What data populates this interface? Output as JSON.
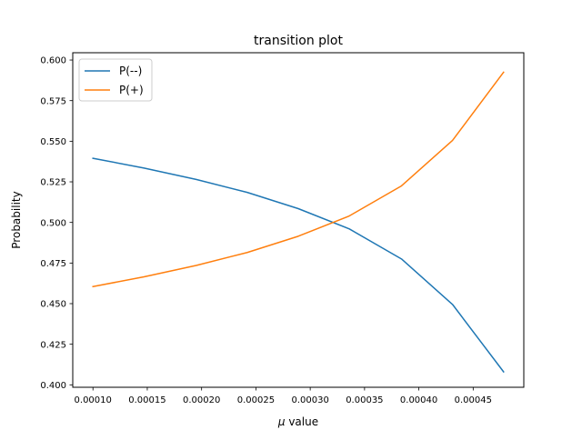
{
  "chart_data": {
    "type": "line",
    "title": "transition plot",
    "xlabel_prefix": "μ",
    "xlabel_suffix": " value",
    "ylabel": "Probability",
    "xlim": [
      8.14e-05,
      0.0004966
    ],
    "ylim": [
      0.3985,
      0.6045
    ],
    "xticks": [
      "0.00010",
      "0.00015",
      "0.00020",
      "0.00025",
      "0.00030",
      "0.00035",
      "0.00040",
      "0.00045"
    ],
    "xtick_values": [
      0.0001,
      0.00015,
      0.0002,
      0.00025,
      0.0003,
      0.00035,
      0.0004,
      0.00045
    ],
    "yticks": [
      "0.400",
      "0.425",
      "0.450",
      "0.475",
      "0.500",
      "0.525",
      "0.550",
      "0.575",
      "0.600"
    ],
    "ytick_values": [
      0.4,
      0.425,
      0.45,
      0.475,
      0.5,
      0.525,
      0.55,
      0.575,
      0.6
    ],
    "x": [
      0.0001,
      0.000147,
      0.000195,
      0.000242,
      0.000289,
      0.000336,
      0.000384,
      0.000431,
      0.000478
    ],
    "series": [
      {
        "name": "P(--)",
        "color": "#1f77b4",
        "values": [
          0.5395,
          0.5335,
          0.5265,
          0.5185,
          0.5085,
          0.496,
          0.4775,
          0.4495,
          0.408
        ]
      },
      {
        "name": "P(+)",
        "color": "#ff7f0e",
        "values": [
          0.4605,
          0.4665,
          0.4735,
          0.4815,
          0.4915,
          0.504,
          0.5225,
          0.5505,
          0.5925
        ]
      }
    ],
    "legend_position": "top-left",
    "grid": false
  }
}
